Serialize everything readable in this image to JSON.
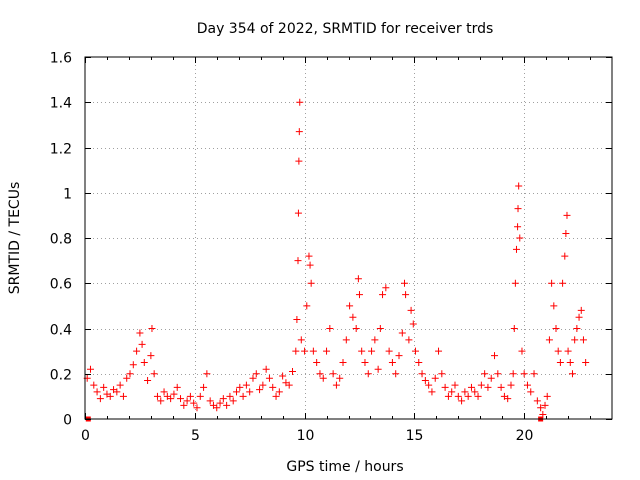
{
  "chart_data": {
    "type": "scatter",
    "title": "Day 354 of 2022, SRMTID for receiver trds",
    "xlabel": "GPS time / hours",
    "ylabel": "SRMTID / TECUs",
    "xlim": [
      0,
      24
    ],
    "ylim": [
      0,
      1.6
    ],
    "xticks": [
      0,
      5,
      10,
      15,
      20
    ],
    "yticks": [
      0,
      0.2,
      0.4,
      0.6,
      0.8,
      1,
      1.2,
      1.4,
      1.6
    ],
    "xtick_labels": [
      "0",
      "5",
      "10",
      "15",
      "20"
    ],
    "ytick_labels": [
      "0",
      "0.2",
      "0.4",
      "0.6",
      "0.8",
      "1",
      "1.2",
      "1.4",
      "1.6"
    ],
    "grid": true,
    "marker": "+",
    "color": "#ff0000",
    "series": [
      {
        "name": "SRMTID",
        "x": [
          0.1,
          0.25,
          0.4,
          0.55,
          0.7,
          0.85,
          1.0,
          1.15,
          1.3,
          1.45,
          1.6,
          1.75,
          1.9,
          2.05,
          2.2,
          2.35,
          2.5,
          2.6,
          2.7,
          2.85,
          3.0,
          3.05,
          3.15,
          3.3,
          3.45,
          3.6,
          3.75,
          3.9,
          4.05,
          4.2,
          4.35,
          4.5,
          4.65,
          4.8,
          4.95,
          5.1,
          5.25,
          5.4,
          5.55,
          5.7,
          5.85,
          6.0,
          6.15,
          6.3,
          6.45,
          6.6,
          6.75,
          6.9,
          7.05,
          7.2,
          7.35,
          7.5,
          7.65,
          7.8,
          7.95,
          8.1,
          8.25,
          8.4,
          8.55,
          8.7,
          8.85,
          9.0,
          9.15,
          9.3,
          9.45,
          9.6,
          9.65,
          9.7,
          9.72,
          9.74,
          9.76,
          9.78,
          9.85,
          10.0,
          10.1,
          10.2,
          10.25,
          10.3,
          10.4,
          10.55,
          10.7,
          10.85,
          11.0,
          11.15,
          11.3,
          11.45,
          11.6,
          11.75,
          11.9,
          12.05,
          12.2,
          12.35,
          12.45,
          12.5,
          12.6,
          12.75,
          12.9,
          13.05,
          13.2,
          13.35,
          13.45,
          13.55,
          13.7,
          13.85,
          14.0,
          14.15,
          14.3,
          14.45,
          14.55,
          14.6,
          14.75,
          14.85,
          14.95,
          15.05,
          15.2,
          15.35,
          15.5,
          15.65,
          15.8,
          15.95,
          16.1,
          16.25,
          16.4,
          16.55,
          16.7,
          16.85,
          17.0,
          17.15,
          17.3,
          17.45,
          17.6,
          17.75,
          17.9,
          18.05,
          18.2,
          18.35,
          18.5,
          18.65,
          18.8,
          18.95,
          19.1,
          19.25,
          19.4,
          19.5,
          19.55,
          19.6,
          19.65,
          19.7,
          19.72,
          19.75,
          19.8,
          19.9,
          20.0,
          20.15,
          20.3,
          20.45,
          20.6,
          20.75,
          20.85,
          20.95,
          21.05,
          21.15,
          21.25,
          21.35,
          21.45,
          21.55,
          21.65,
          21.75,
          21.85,
          21.9,
          21.95,
          22.0,
          22.1,
          22.2,
          22.3,
          22.4,
          22.5,
          22.6,
          22.7,
          22.8
        ],
        "y": [
          0.18,
          0.22,
          0.15,
          0.12,
          0.09,
          0.14,
          0.11,
          0.1,
          0.13,
          0.12,
          0.15,
          0.1,
          0.18,
          0.2,
          0.24,
          0.3,
          0.38,
          0.33,
          0.25,
          0.17,
          0.28,
          0.4,
          0.2,
          0.1,
          0.08,
          0.12,
          0.1,
          0.09,
          0.11,
          0.14,
          0.09,
          0.06,
          0.08,
          0.1,
          0.07,
          0.05,
          0.1,
          0.14,
          0.2,
          0.08,
          0.06,
          0.05,
          0.07,
          0.09,
          0.06,
          0.1,
          0.08,
          0.12,
          0.14,
          0.1,
          0.15,
          0.12,
          0.18,
          0.2,
          0.13,
          0.15,
          0.22,
          0.18,
          0.14,
          0.1,
          0.12,
          0.19,
          0.16,
          0.15,
          0.21,
          0.3,
          0.44,
          0.7,
          0.91,
          1.14,
          1.27,
          1.4,
          0.35,
          0.3,
          0.5,
          0.72,
          0.68,
          0.6,
          0.3,
          0.25,
          0.2,
          0.18,
          0.3,
          0.4,
          0.2,
          0.15,
          0.18,
          0.25,
          0.35,
          0.5,
          0.45,
          0.4,
          0.62,
          0.55,
          0.3,
          0.25,
          0.2,
          0.3,
          0.35,
          0.22,
          0.4,
          0.55,
          0.58,
          0.3,
          0.25,
          0.2,
          0.28,
          0.38,
          0.6,
          0.55,
          0.35,
          0.48,
          0.42,
          0.3,
          0.25,
          0.2,
          0.17,
          0.15,
          0.12,
          0.18,
          0.3,
          0.2,
          0.14,
          0.1,
          0.12,
          0.15,
          0.1,
          0.08,
          0.12,
          0.1,
          0.14,
          0.12,
          0.1,
          0.15,
          0.2,
          0.14,
          0.18,
          0.28,
          0.2,
          0.14,
          0.1,
          0.09,
          0.15,
          0.2,
          0.4,
          0.6,
          0.75,
          0.85,
          0.93,
          1.03,
          0.8,
          0.3,
          0.2,
          0.15,
          0.12,
          0.2,
          0.08,
          0.05,
          0.02,
          0.06,
          0.1,
          0.35,
          0.6,
          0.5,
          0.4,
          0.3,
          0.25,
          0.6,
          0.72,
          0.82,
          0.9,
          0.3,
          0.25,
          0.2,
          0.35,
          0.4,
          0.45,
          0.48,
          0.35,
          0.25
        ]
      }
    ],
    "zero_markers": [
      0.15,
      20.75
    ]
  }
}
